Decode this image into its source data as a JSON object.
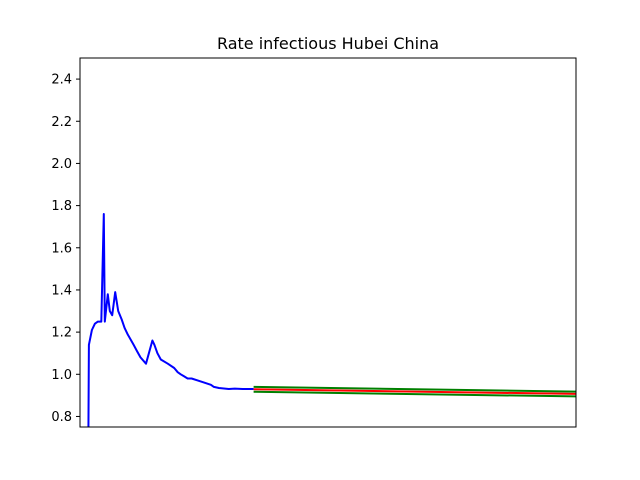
{
  "chart_data": {
    "type": "line",
    "title": "Rate infectious Hubei China",
    "xlabel": "",
    "ylabel": "",
    "ylim": [
      0.75,
      2.5
    ],
    "xlim": [
      0,
      100
    ],
    "yticks": [
      "0.8",
      "1.0",
      "1.2",
      "1.4",
      "1.6",
      "1.8",
      "2.0",
      "2.2",
      "2.4"
    ],
    "x_ticks_shown": false,
    "grid": false,
    "colors": {
      "observed": "#0000ff",
      "forecast": "#ff0000",
      "bounds": "#008000"
    },
    "series": [
      {
        "role": "observed",
        "x": [
          1.7,
          1.8,
          2.4,
          3.0,
          3.6,
          4.3,
          4.8,
          5.0,
          5.6,
          6.0,
          6.5,
          7.1,
          7.7,
          8.4,
          9.0,
          9.6,
          10.8,
          11.5,
          12.2,
          13.3,
          14.6,
          15.0,
          15.6,
          16.3,
          17.7,
          19.0,
          19.7,
          20.3,
          21.0,
          21.7,
          22.5,
          23.8,
          25.1,
          26.4,
          27.0,
          28.0,
          30.0,
          31.2,
          32.8,
          34.0,
          35.0
        ],
        "y": [
          0.72,
          1.14,
          1.21,
          1.24,
          1.25,
          1.25,
          1.76,
          1.25,
          1.38,
          1.3,
          1.28,
          1.39,
          1.3,
          1.26,
          1.22,
          1.19,
          1.14,
          1.11,
          1.08,
          1.05,
          1.16,
          1.14,
          1.1,
          1.07,
          1.05,
          1.03,
          1.01,
          1.0,
          0.99,
          0.98,
          0.98,
          0.97,
          0.96,
          0.95,
          0.94,
          0.935,
          0.93,
          0.932,
          0.93,
          0.93,
          0.93
        ]
      },
      {
        "role": "forecast",
        "x": [
          35,
          100
        ],
        "y": [
          0.929,
          0.907
        ]
      },
      {
        "role": "upper-bound",
        "x": [
          35,
          100
        ],
        "y": [
          0.94,
          0.918
        ]
      },
      {
        "role": "lower-bound",
        "x": [
          35,
          100
        ],
        "y": [
          0.917,
          0.895
        ]
      }
    ]
  }
}
